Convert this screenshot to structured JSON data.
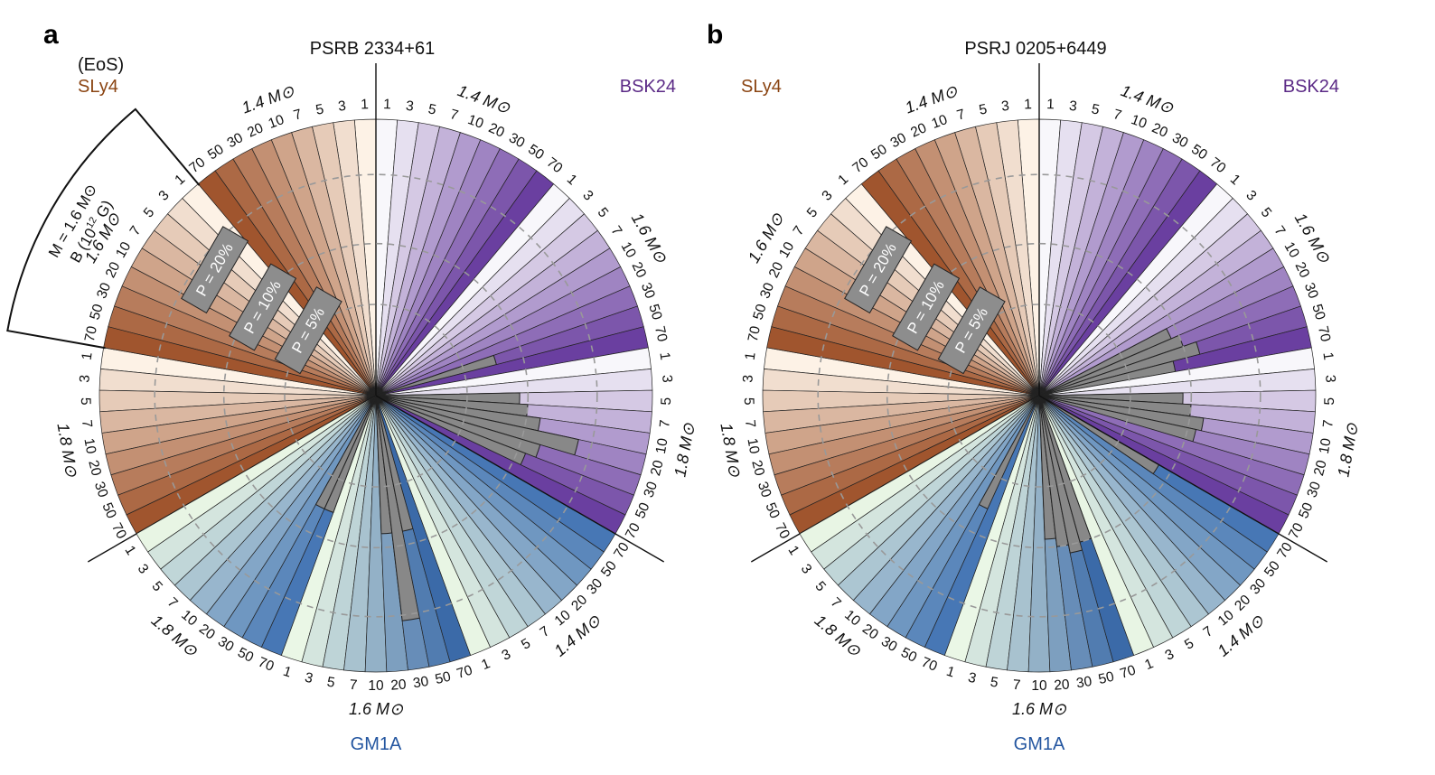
{
  "chart_data": {
    "type": "polar-bar",
    "b_values": [
      "1",
      "3",
      "5",
      "7",
      "10",
      "20",
      "30",
      "50",
      "70"
    ],
    "b_unit_label": "B (10",
    "b_unit_exp": "12",
    "b_unit_end": " G)",
    "key_mass_label": "M = 1.6 M",
    "sun_symbol": "⊙",
    "eos_header": "(EoS)",
    "radial_circles": [
      "P = 5%",
      "P = 10%",
      "P = 20%"
    ],
    "radial_fractions": [
      0.33,
      0.55,
      0.8
    ],
    "eos": [
      {
        "name": "SLy4",
        "color": "#8B4513",
        "light": "#fdf3ea",
        "dark": "#a86a4a"
      },
      {
        "name": "BSK24",
        "color": "#5b2a86",
        "light": "#f7f5fb",
        "dark": "#6e4a9e"
      },
      {
        "name": "GM1A",
        "color": "#2456a0",
        "light": "#eaf7e6",
        "dark": "#4a6f9f"
      }
    ],
    "masses": [
      "1.4 M",
      "1.6 M",
      "1.8 M"
    ],
    "panels": [
      {
        "letter": "a",
        "title": "PSRB 2334+61",
        "show_eos_header": true,
        "bars": {
          "SLy4": [
            [],
            [],
            []
          ],
          "BSK24": [
            [],
            [
              0,
              0,
              0,
              0,
              0,
              0,
              0,
              0.45,
              0
            ],
            [
              0,
              0,
              0.52,
              0.55,
              0.6,
              0.75,
              0.62,
              0.58,
              0
            ]
          ],
          "GM1A": [
            [],
            [
              0,
              0,
              0,
              0,
              0,
              0.5,
              0.82,
              0.5,
              0
            ],
            [
              0,
              0,
              0,
              0,
              0,
              0,
              0,
              0.45,
              0.45
            ]
          ]
        }
      },
      {
        "letter": "b",
        "title": "PSRJ 0205+6449",
        "show_eos_header": false,
        "bars": {
          "SLy4": [
            [],
            [],
            []
          ],
          "BSK24": [
            [],
            [
              0,
              0,
              0,
              0,
              0,
              0.52,
              0.55,
              0.6,
              0.5
            ],
            [
              0,
              0,
              0.52,
              0.55,
              0.6,
              0.58,
              0,
              0,
              0
            ]
          ],
          "GM1A": [
            [
              0,
              0,
              0,
              0,
              0,
              0,
              0,
              0,
              0.5
            ],
            [
              0,
              0,
              0,
              0,
              0,
              0.52,
              0.55,
              0.58,
              0.55
            ],
            [
              0,
              0,
              0,
              0,
              0,
              0,
              0,
              0.45,
              0
            ]
          ]
        }
      }
    ]
  }
}
